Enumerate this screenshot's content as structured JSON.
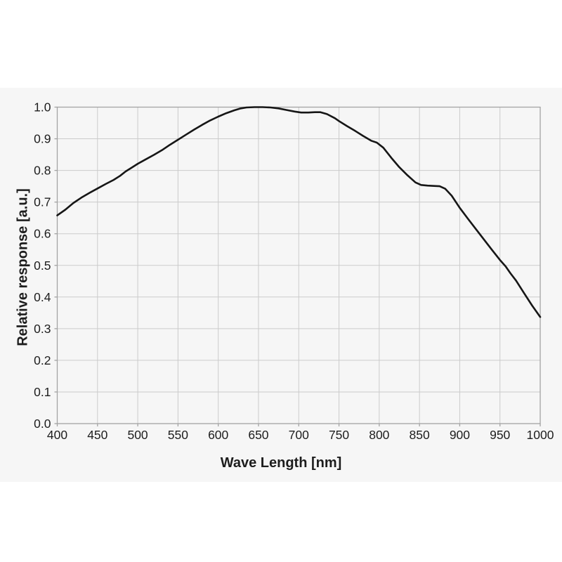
{
  "figure": {
    "page_background": "#ffffff",
    "panel_background": "#f6f6f6",
    "grid_color": "#cbcbcb",
    "frame_color": "#a3a3a3",
    "text_color": "#1d1d1d",
    "line_color": "#161616"
  },
  "chart_data": {
    "type": "line",
    "title": "",
    "xlabel": "Wave Length [nm]",
    "ylabel": "Relative response [a.u.]",
    "xlim": [
      400,
      1000
    ],
    "ylim": [
      0.0,
      1.0
    ],
    "xticks": [
      400,
      450,
      500,
      550,
      600,
      650,
      700,
      750,
      800,
      850,
      900,
      950,
      1000
    ],
    "yticks": [
      0.0,
      0.1,
      0.2,
      0.3,
      0.4,
      0.5,
      0.6,
      0.7,
      0.8,
      0.9,
      1.0
    ],
    "grid": true,
    "legend": "none",
    "series": [
      {
        "name": "relative_response",
        "color": "#161616",
        "x": [
          400,
          410,
          420,
          430,
          440,
          450,
          460,
          470,
          478,
          485,
          492,
          500,
          510,
          520,
          530,
          540,
          550,
          560,
          570,
          580,
          590,
          600,
          610,
          620,
          628,
          635,
          645,
          655,
          665,
          675,
          685,
          695,
          703,
          712,
          720,
          727,
          735,
          745,
          750,
          760,
          770,
          780,
          790,
          797,
          805,
          815,
          825,
          835,
          845,
          852,
          860,
          868,
          875,
          882,
          890,
          900,
          910,
          920,
          930,
          940,
          950,
          957,
          963,
          970,
          980,
          990,
          1000
        ],
        "y": [
          0.658,
          0.676,
          0.697,
          0.714,
          0.729,
          0.743,
          0.757,
          0.77,
          0.783,
          0.797,
          0.808,
          0.821,
          0.835,
          0.849,
          0.864,
          0.881,
          0.897,
          0.913,
          0.929,
          0.944,
          0.958,
          0.97,
          0.981,
          0.99,
          0.996,
          0.999,
          1.0,
          1.0,
          0.999,
          0.996,
          0.991,
          0.986,
          0.983,
          0.983,
          0.984,
          0.984,
          0.978,
          0.965,
          0.956,
          0.94,
          0.925,
          0.909,
          0.894,
          0.888,
          0.872,
          0.84,
          0.81,
          0.785,
          0.762,
          0.754,
          0.752,
          0.751,
          0.75,
          0.742,
          0.72,
          0.682,
          0.648,
          0.615,
          0.582,
          0.549,
          0.517,
          0.497,
          0.475,
          0.452,
          0.412,
          0.373,
          0.337
        ]
      }
    ]
  }
}
